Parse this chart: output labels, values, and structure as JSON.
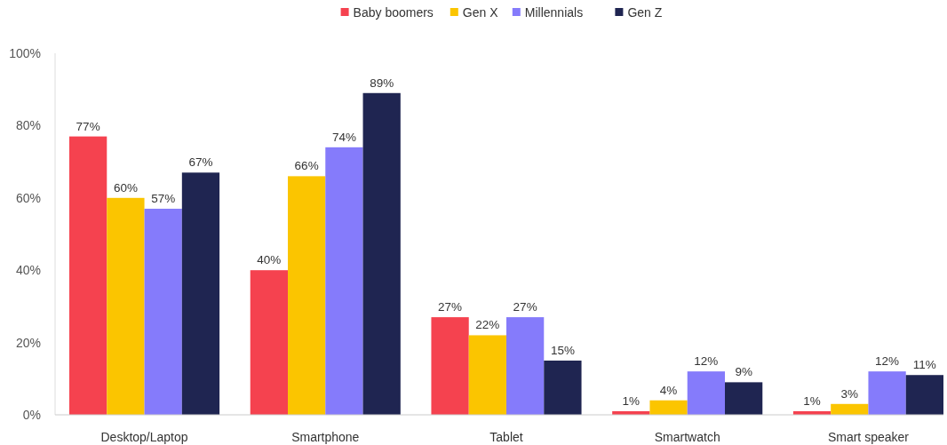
{
  "chart_data": {
    "type": "bar",
    "categories": [
      "Desktop/Laptop",
      "Smartphone",
      "Tablet",
      "Smartwatch",
      "Smart speaker"
    ],
    "series": [
      {
        "name": "Baby boomers",
        "color": "#f5424f",
        "values": [
          77,
          40,
          27,
          1,
          1
        ],
        "value_labels": [
          "77%",
          "40%",
          "27%",
          "1%",
          "1%"
        ]
      },
      {
        "name": "Gen X",
        "color": "#fbc500",
        "values": [
          60,
          66,
          22,
          4,
          3
        ],
        "value_labels": [
          "60%",
          "66%",
          "22%",
          "4%",
          "3%"
        ]
      },
      {
        "name": "Millennials",
        "color": "#857bfb",
        "values": [
          57,
          74,
          27,
          12,
          12
        ],
        "value_labels": [
          "57%",
          "74%",
          "27%",
          "12%",
          "12%"
        ]
      },
      {
        "name": "Gen Z",
        "color": "#1f2551",
        "values": [
          67,
          89,
          15,
          9,
          11
        ],
        "value_labels": [
          "67%",
          "89%",
          "15%",
          "9%",
          "11%"
        ]
      }
    ],
    "ylim": [
      0,
      100
    ],
    "yticks": [
      {
        "value": 0,
        "label": "0%"
      },
      {
        "value": 20,
        "label": "20%"
      },
      {
        "value": 40,
        "label": "40%"
      },
      {
        "value": 60,
        "label": "60%"
      },
      {
        "value": 80,
        "label": "80%"
      },
      {
        "value": 100,
        "label": "100%"
      }
    ],
    "legend": "top",
    "grid": false
  }
}
